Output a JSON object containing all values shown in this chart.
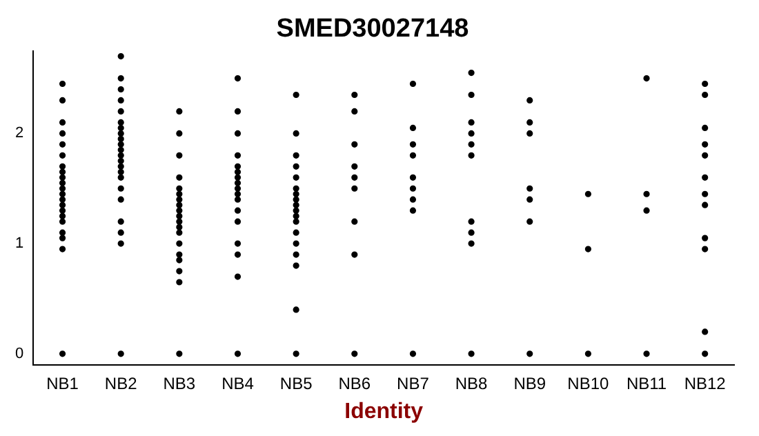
{
  "chart_data": {
    "type": "scatter",
    "title": "SMED30027148",
    "xlabel": "Identity",
    "categories": [
      "NB1",
      "NB2",
      "NB3",
      "NB4",
      "NB5",
      "NB6",
      "NB7",
      "NB8",
      "NB9",
      "NB10",
      "NB11",
      "NB12"
    ],
    "ylim": [
      -0.1,
      2.75
    ],
    "yticks": [
      0,
      1,
      2
    ],
    "grid": false,
    "legend": false,
    "marker": "circle",
    "series": [
      {
        "color": "#000000",
        "x": [
          "NB1",
          "NB1",
          "NB1",
          "NB1",
          "NB1",
          "NB1",
          "NB1",
          "NB1",
          "NB1",
          "NB1",
          "NB1",
          "NB1",
          "NB1",
          "NB1",
          "NB1",
          "NB1",
          "NB1",
          "NB1",
          "NB1",
          "NB1",
          "NB1"
        ],
        "values": [
          0,
          0.95,
          1.05,
          1.1,
          1.2,
          1.25,
          1.3,
          1.35,
          1.4,
          1.45,
          1.5,
          1.55,
          1.6,
          1.65,
          1.7,
          1.8,
          1.9,
          2.0,
          2.1,
          2.3,
          2.45
        ]
      },
      {
        "color": "#000000",
        "x": [
          "NB2",
          "NB2",
          "NB2",
          "NB2",
          "NB2",
          "NB2",
          "NB2",
          "NB2",
          "NB2",
          "NB2",
          "NB2",
          "NB2",
          "NB2",
          "NB2",
          "NB2",
          "NB2",
          "NB2",
          "NB2",
          "NB2",
          "NB2",
          "NB2",
          "NB2"
        ],
        "values": [
          0,
          1.0,
          1.1,
          1.2,
          1.4,
          1.5,
          1.6,
          1.65,
          1.7,
          1.75,
          1.8,
          1.85,
          1.9,
          1.95,
          2.0,
          2.05,
          2.1,
          2.2,
          2.3,
          2.4,
          2.5,
          2.7
        ]
      },
      {
        "color": "#000000",
        "x": [
          "NB3",
          "NB3",
          "NB3",
          "NB3",
          "NB3",
          "NB3",
          "NB3",
          "NB3",
          "NB3",
          "NB3",
          "NB3",
          "NB3",
          "NB3",
          "NB3",
          "NB3",
          "NB3",
          "NB3",
          "NB3",
          "NB3"
        ],
        "values": [
          0,
          0.65,
          0.75,
          0.85,
          0.9,
          1.0,
          1.1,
          1.15,
          1.2,
          1.25,
          1.3,
          1.35,
          1.4,
          1.45,
          1.5,
          1.6,
          1.8,
          2.0,
          2.2
        ]
      },
      {
        "color": "#000000",
        "x": [
          "NB4",
          "NB4",
          "NB4",
          "NB4",
          "NB4",
          "NB4",
          "NB4",
          "NB4",
          "NB4",
          "NB4",
          "NB4",
          "NB4",
          "NB4",
          "NB4",
          "NB4",
          "NB4",
          "NB4"
        ],
        "values": [
          0,
          0.7,
          0.9,
          1.0,
          1.2,
          1.3,
          1.4,
          1.45,
          1.5,
          1.55,
          1.6,
          1.65,
          1.7,
          1.8,
          2.0,
          2.2,
          2.5
        ]
      },
      {
        "color": "#000000",
        "x": [
          "NB5",
          "NB5",
          "NB5",
          "NB5",
          "NB5",
          "NB5",
          "NB5",
          "NB5",
          "NB5",
          "NB5",
          "NB5",
          "NB5",
          "NB5",
          "NB5",
          "NB5",
          "NB5",
          "NB5",
          "NB5"
        ],
        "values": [
          0,
          0.4,
          0.8,
          0.9,
          1.0,
          1.1,
          1.2,
          1.25,
          1.3,
          1.35,
          1.4,
          1.45,
          1.5,
          1.6,
          1.7,
          1.8,
          2.0,
          2.35
        ]
      },
      {
        "color": "#000000",
        "x": [
          "NB6",
          "NB6",
          "NB6",
          "NB6",
          "NB6",
          "NB6",
          "NB6",
          "NB6",
          "NB6"
        ],
        "values": [
          0,
          0.9,
          1.2,
          1.5,
          1.6,
          1.7,
          1.9,
          2.2,
          2.35
        ]
      },
      {
        "color": "#000000",
        "x": [
          "NB7",
          "NB7",
          "NB7",
          "NB7",
          "NB7",
          "NB7",
          "NB7",
          "NB7",
          "NB7"
        ],
        "values": [
          0,
          1.3,
          1.4,
          1.5,
          1.6,
          1.8,
          1.9,
          2.05,
          2.45
        ]
      },
      {
        "color": "#000000",
        "x": [
          "NB8",
          "NB8",
          "NB8",
          "NB8",
          "NB8",
          "NB8",
          "NB8",
          "NB8",
          "NB8",
          "NB8"
        ],
        "values": [
          0,
          1.0,
          1.1,
          1.2,
          1.8,
          1.9,
          2.0,
          2.1,
          2.35,
          2.55
        ]
      },
      {
        "color": "#000000",
        "x": [
          "NB9",
          "NB9",
          "NB9",
          "NB9",
          "NB9",
          "NB9",
          "NB9"
        ],
        "values": [
          0,
          1.2,
          1.4,
          1.5,
          2.0,
          2.1,
          2.3
        ]
      },
      {
        "color": "#000000",
        "x": [
          "NB10",
          "NB10",
          "NB10"
        ],
        "values": [
          0,
          0.95,
          1.45
        ]
      },
      {
        "color": "#000000",
        "x": [
          "NB11",
          "NB11",
          "NB11",
          "NB11"
        ],
        "values": [
          0,
          1.3,
          1.45,
          2.5
        ]
      },
      {
        "color": "#000000",
        "x": [
          "NB12",
          "NB12",
          "NB12",
          "NB12",
          "NB12",
          "NB12",
          "NB12",
          "NB12",
          "NB12",
          "NB12",
          "NB12",
          "NB12"
        ],
        "values": [
          0,
          0.2,
          0.95,
          1.05,
          1.35,
          1.45,
          1.6,
          1.8,
          1.9,
          2.05,
          2.35,
          2.45
        ]
      }
    ]
  }
}
